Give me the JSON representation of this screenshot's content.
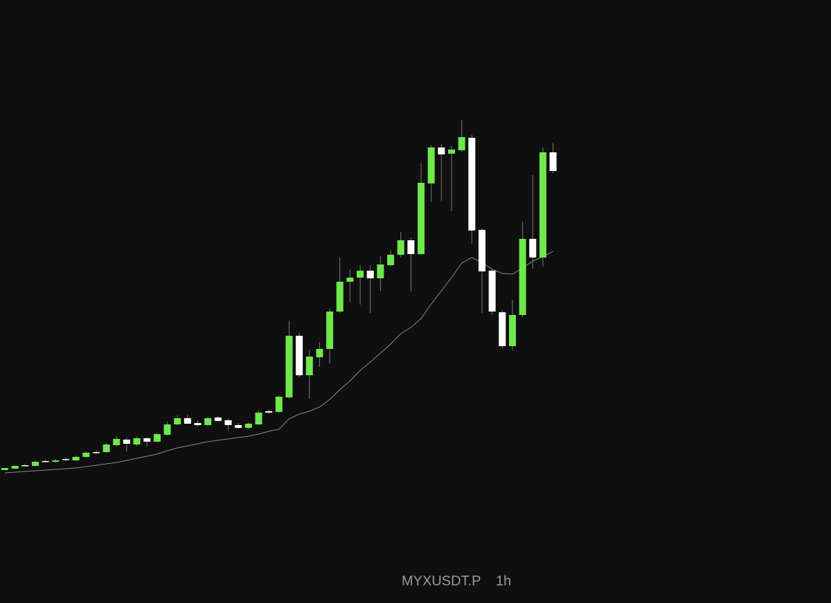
{
  "chart_data": {
    "type": "candlestick",
    "symbol": "MYXUSDT.P",
    "interval": "1h",
    "ylim": [
      0,
      871
    ],
    "up_color": "#6ee84a",
    "down_color": "#ffffff",
    "open": [
      192,
      194,
      199,
      198,
      205,
      204,
      208,
      206,
      211,
      218,
      218,
      228,
      236,
      229,
      238,
      233,
      243,
      258,
      267,
      260,
      257,
      268,
      264,
      257,
      253,
      258,
      277,
      276,
      297,
      386,
      329,
      355,
      367,
      421,
      464,
      470,
      480,
      469,
      488,
      503,
      524,
      504,
      606,
      658,
      649,
      654,
      672,
      539,
      480,
      420,
      371,
      416,
      526,
      499,
      651
    ],
    "high": [
      195,
      199,
      201,
      206,
      207,
      208,
      210,
      213,
      219,
      220,
      231,
      241,
      239,
      241,
      240,
      246,
      262,
      271,
      272,
      264,
      269,
      270,
      267,
      260,
      261,
      278,
      280,
      300,
      408,
      391,
      366,
      377,
      425,
      499,
      482,
      488,
      488,
      501,
      509,
      536,
      528,
      635,
      661,
      663,
      660,
      698,
      676,
      541,
      482,
      423,
      438,
      551,
      618,
      658,
      665
    ],
    "low": [
      192,
      193,
      197,
      197,
      203,
      203,
      205,
      205,
      210,
      215,
      217,
      226,
      219,
      227,
      226,
      232,
      242,
      256,
      258,
      255,
      255,
      262,
      249,
      251,
      251,
      257,
      273,
      274,
      295,
      326,
      295,
      341,
      346,
      419,
      435,
      431,
      419,
      451,
      486,
      499,
      450,
      503,
      579,
      581,
      566,
      651,
      519,
      419,
      416,
      367,
      365,
      413,
      483,
      486,
      621
    ],
    "close": [
      195,
      198,
      198,
      204,
      204,
      206,
      207,
      211,
      217,
      217,
      229,
      237,
      230,
      238,
      233,
      244,
      258,
      267,
      259,
      257,
      267,
      263,
      257,
      253,
      259,
      275,
      275,
      298,
      386,
      329,
      356,
      367,
      421,
      464,
      470,
      480,
      469,
      489,
      503,
      524,
      504,
      607,
      658,
      648,
      655,
      673,
      538,
      479,
      421,
      371,
      416,
      526,
      499,
      651,
      624
    ],
    "ma": {
      "color": "#8c8c8c",
      "values": [
        188,
        189,
        190,
        191,
        192,
        193,
        194,
        195,
        197,
        199,
        201,
        203,
        206,
        209,
        212,
        215,
        220,
        224,
        227,
        230,
        233,
        235,
        237,
        239,
        241,
        244,
        248,
        251,
        266,
        273,
        277,
        283,
        294,
        308,
        321,
        336,
        348,
        361,
        374,
        389,
        398,
        411,
        432,
        451,
        470,
        491,
        499,
        492,
        482,
        476,
        475,
        484,
        494,
        500,
        508
      ]
    }
  }
}
